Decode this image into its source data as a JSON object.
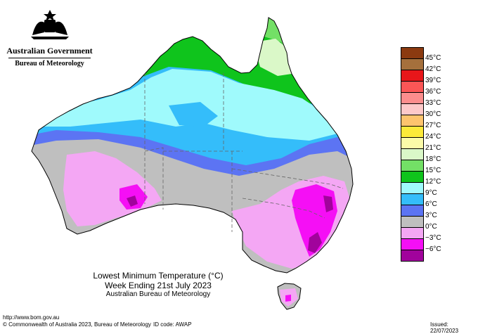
{
  "header": {
    "government": "Australian Government",
    "bureau": "Bureau of Meteorology"
  },
  "map": {
    "title": "Lowest Minimum Temperature (°C)",
    "subtitle": "Week Ending 21st July 2023",
    "credit": "Australian Bureau of Meteorology"
  },
  "legend": {
    "items": [
      {
        "label": "45°C",
        "color": "#8b3a10"
      },
      {
        "label": "42°C",
        "color": "#a5703c"
      },
      {
        "label": "39°C",
        "color": "#e8161a"
      },
      {
        "label": "36°C",
        "color": "#fb5656"
      },
      {
        "label": "33°C",
        "color": "#fc8d8d"
      },
      {
        "label": "30°C",
        "color": "#fdc9c9"
      },
      {
        "label": "27°C",
        "color": "#fdc46e"
      },
      {
        "label": "24°C",
        "color": "#fcea3a"
      },
      {
        "label": "21°C",
        "color": "#fbfba9"
      },
      {
        "label": "18°C",
        "color": "#daf8c8"
      },
      {
        "label": "15°C",
        "color": "#73e066"
      },
      {
        "label": "12°C",
        "color": "#0fc41c"
      },
      {
        "label": "9°C",
        "color": "#9ffafc"
      },
      {
        "label": "6°C",
        "color": "#34bdfa"
      },
      {
        "label": "3°C",
        "color": "#5c74f3"
      },
      {
        "label": "0°C",
        "color": "#bfbfbf"
      },
      {
        "label": "−3°C",
        "color": "#f4a7f4"
      },
      {
        "label": "−6°C",
        "color": "#f50ff5"
      },
      {
        "label": "",
        "color": "#a1039c"
      }
    ]
  },
  "footer": {
    "url": "http://www.bom.gov.au",
    "copyright": "© Commonwealth of Australia 2023, Bureau of Meteorology",
    "id_code": "ID code: AWAP",
    "issued": "Issued: 22/07/2023"
  }
}
